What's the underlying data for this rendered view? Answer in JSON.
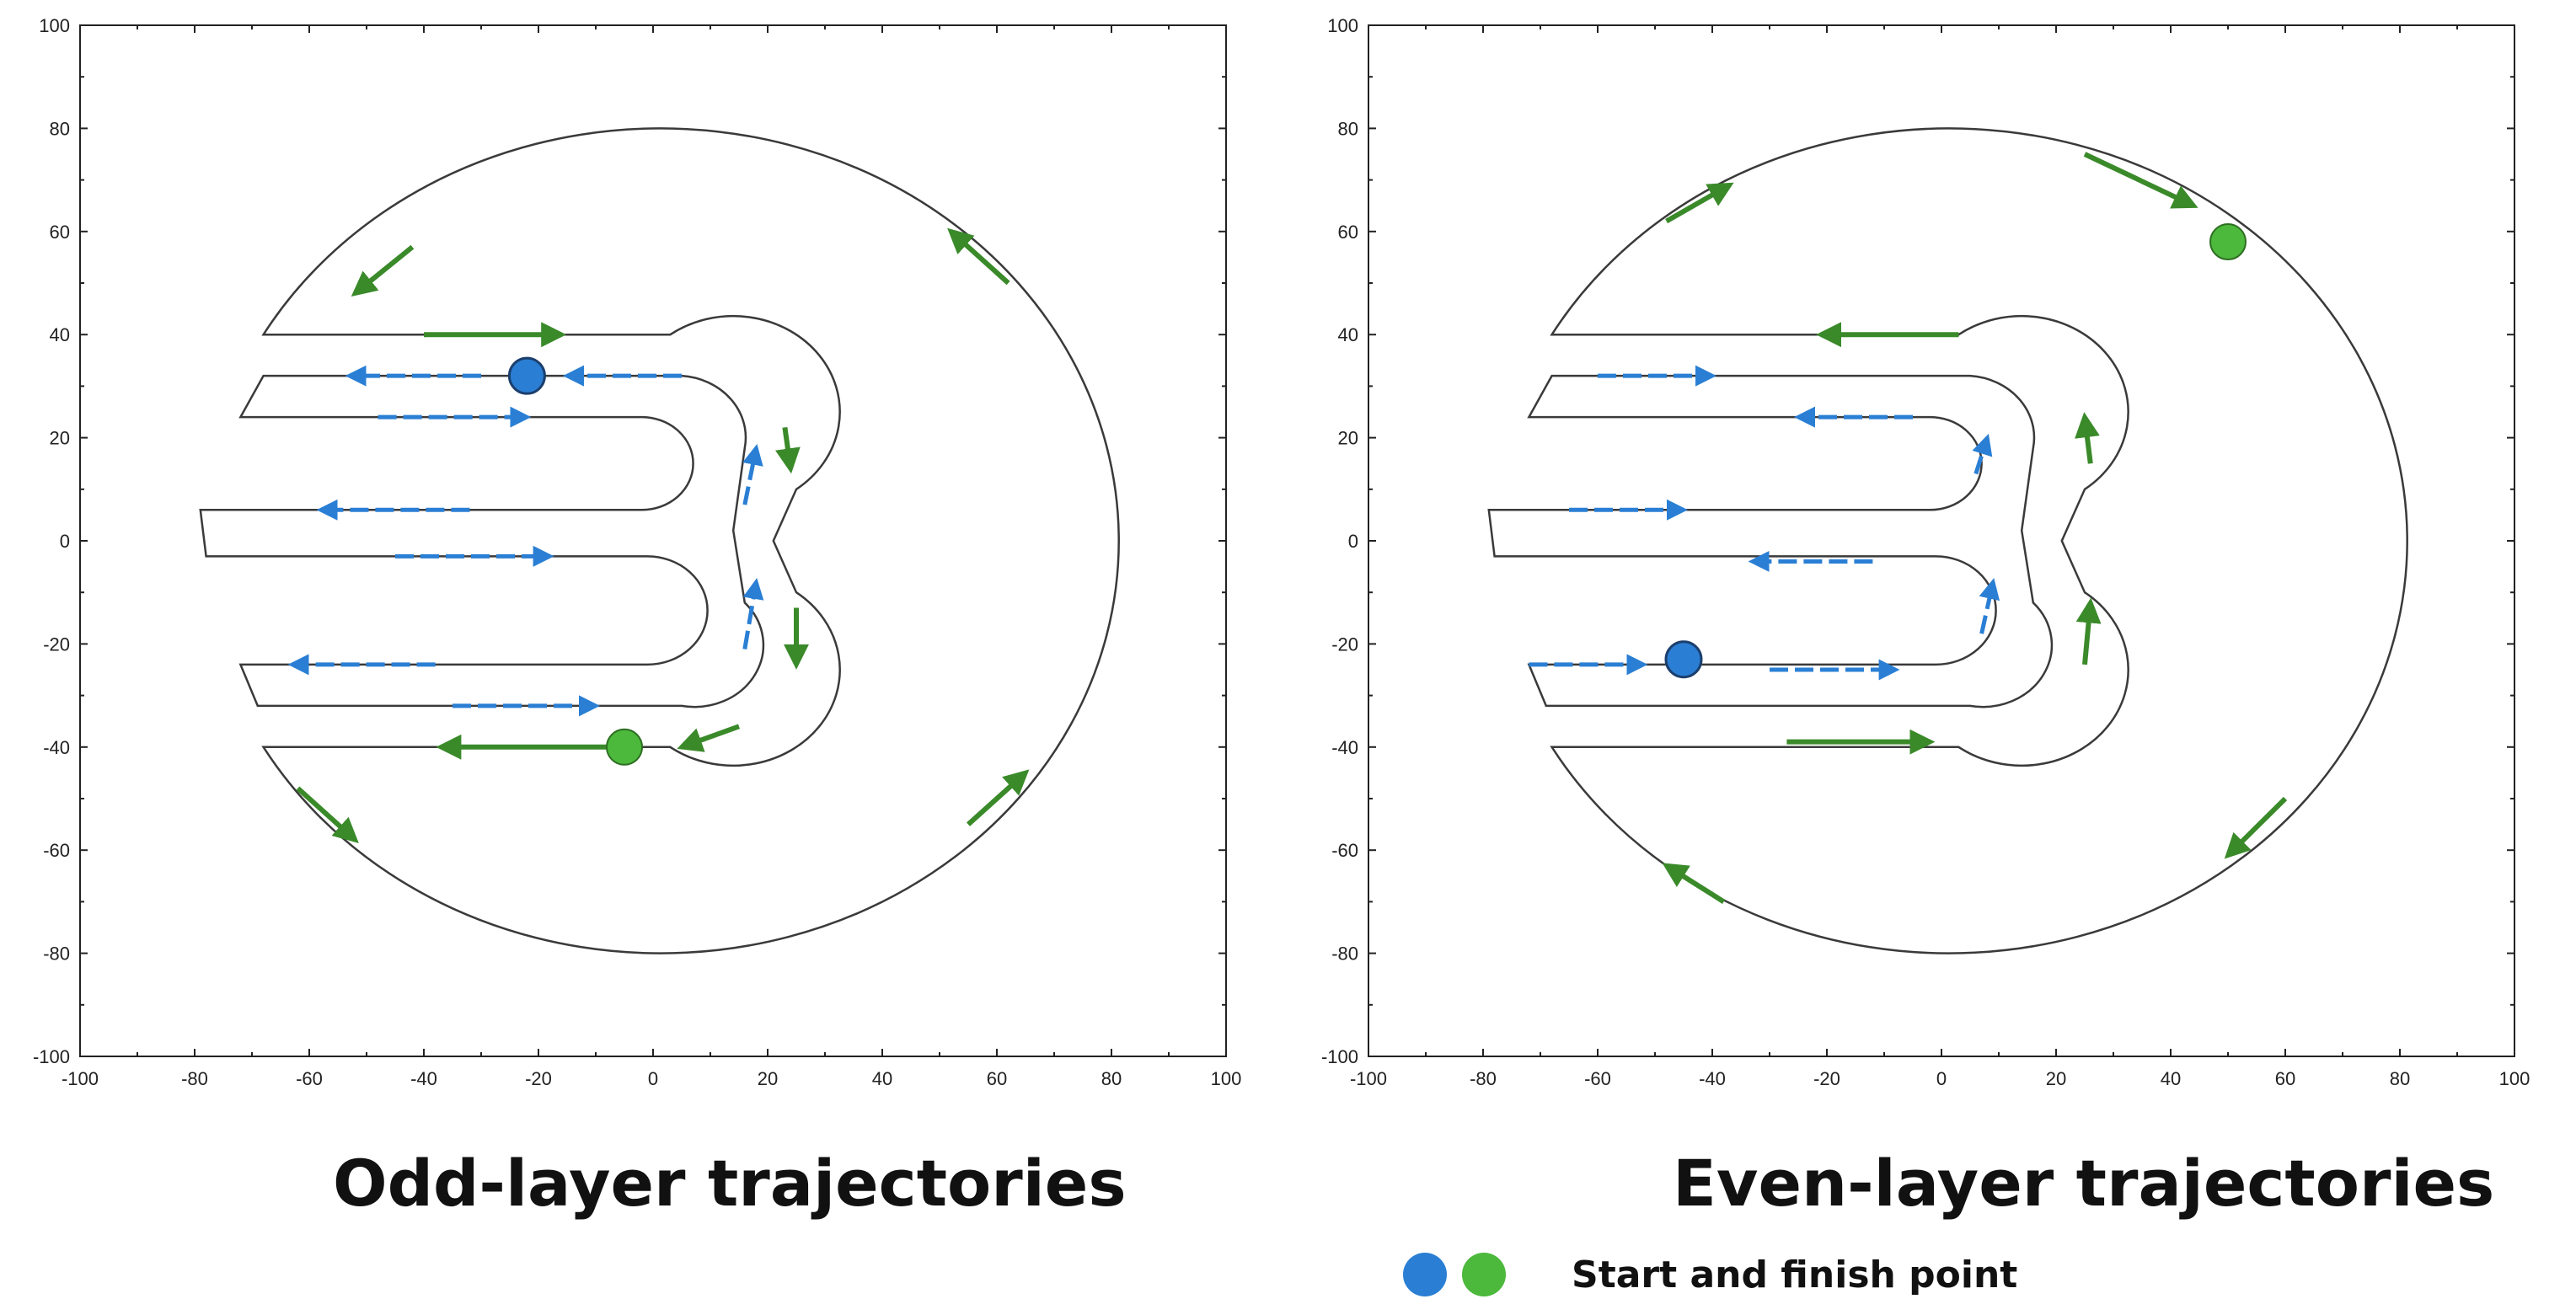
{
  "axes": {
    "x_range": [
      -100,
      100
    ],
    "y_range": [
      -100,
      100
    ],
    "x_ticks": [
      "-100",
      "-80",
      "-60",
      "-40",
      "-20",
      "0",
      "20",
      "40",
      "60",
      "80",
      "100"
    ],
    "y_ticks": [
      "100",
      "80",
      "60",
      "40",
      "20",
      "0",
      "-20",
      "-40",
      "-60",
      "-80",
      "-100"
    ]
  },
  "colors": {
    "outline": "#3a3a3a",
    "green_path": "#3a8a2a",
    "blue_path": "#2a7fd4",
    "start_marker": "#2a7fd4",
    "finish_marker": "#4cb83c"
  },
  "panels": [
    {
      "caption": "Odd-layer trajectories",
      "start_point": [
        -22,
        32
      ],
      "finish_point": [
        -5,
        -40
      ],
      "green_arrows": [
        {
          "from": [
            -40,
            40
          ],
          "to": [
            -16,
            40
          ]
        },
        {
          "from": [
            -8,
            -40
          ],
          "to": [
            -37,
            -40
          ]
        },
        {
          "from": [
            23,
            22
          ],
          "to": [
            24,
            14
          ]
        },
        {
          "from": [
            25,
            -13
          ],
          "to": [
            25,
            -24
          ]
        },
        {
          "from": [
            15,
            -36
          ],
          "to": [
            5,
            -40
          ]
        },
        {
          "from": [
            -42,
            57
          ],
          "to": [
            -52,
            48
          ]
        },
        {
          "from": [
            -62,
            -48
          ],
          "to": [
            -52,
            -58
          ]
        },
        {
          "from": [
            55,
            -55
          ],
          "to": [
            65,
            -45
          ]
        },
        {
          "from": [
            62,
            50
          ],
          "to": [
            52,
            60
          ]
        }
      ],
      "blue_arrows": [
        {
          "from": [
            5,
            32
          ],
          "to": [
            -15,
            32
          ]
        },
        {
          "from": [
            -30,
            32
          ],
          "to": [
            -53,
            32
          ]
        },
        {
          "from": [
            -48,
            24
          ],
          "to": [
            -22,
            24
          ]
        },
        {
          "from": [
            -32,
            6
          ],
          "to": [
            -58,
            6
          ]
        },
        {
          "from": [
            -45,
            -3
          ],
          "to": [
            -18,
            -3
          ]
        },
        {
          "from": [
            -38,
            -24
          ],
          "to": [
            -63,
            -24
          ]
        },
        {
          "from": [
            -35,
            -32
          ],
          "to": [
            -10,
            -32
          ]
        },
        {
          "from": [
            16,
            7
          ],
          "to": [
            18,
            18
          ]
        },
        {
          "from": [
            16,
            -21
          ],
          "to": [
            18,
            -8
          ]
        }
      ]
    },
    {
      "caption": "Even-layer trajectories",
      "start_point": [
        -45,
        -23
      ],
      "finish_point": [
        50,
        58
      ],
      "green_arrows": [
        {
          "from": [
            3,
            40
          ],
          "to": [
            -21,
            40
          ]
        },
        {
          "from": [
            -27,
            -39
          ],
          "to": [
            -2,
            -39
          ]
        },
        {
          "from": [
            26,
            15
          ],
          "to": [
            25,
            24
          ]
        },
        {
          "from": [
            25,
            -24
          ],
          "to": [
            26,
            -12
          ]
        },
        {
          "from": [
            -48,
            62
          ],
          "to": [
            -37,
            69
          ]
        },
        {
          "from": [
            25,
            75
          ],
          "to": [
            44,
            65
          ]
        },
        {
          "from": [
            60,
            -50
          ],
          "to": [
            50,
            -61
          ]
        },
        {
          "from": [
            -38,
            -70
          ],
          "to": [
            -48,
            -63
          ]
        }
      ],
      "blue_arrows": [
        {
          "from": [
            -60,
            32
          ],
          "to": [
            -40,
            32
          ]
        },
        {
          "from": [
            -5,
            24
          ],
          "to": [
            -25,
            24
          ]
        },
        {
          "from": [
            -65,
            6
          ],
          "to": [
            -45,
            6
          ]
        },
        {
          "from": [
            -12,
            -4
          ],
          "to": [
            -33,
            -4
          ]
        },
        {
          "from": [
            -72,
            -24
          ],
          "to": [
            -52,
            -24
          ]
        },
        {
          "from": [
            -30,
            -25
          ],
          "to": [
            -8,
            -25
          ]
        },
        {
          "from": [
            6,
            13
          ],
          "to": [
            8,
            20
          ]
        },
        {
          "from": [
            7,
            -18
          ],
          "to": [
            9,
            -8
          ]
        }
      ]
    }
  ],
  "legend": {
    "label": "Start and finish point"
  }
}
